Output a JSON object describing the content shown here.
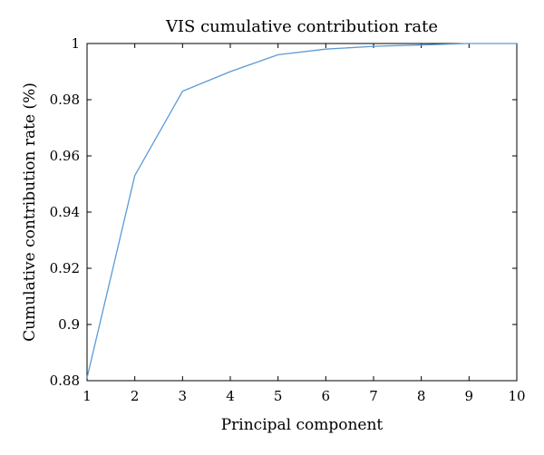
{
  "chart_data": {
    "type": "line",
    "title": "VIS cumulative contribution rate",
    "xlabel": "Principal component",
    "ylabel": "Cumulative contribution rate (%)",
    "xlim": [
      1,
      10
    ],
    "ylim": [
      0.88,
      1
    ],
    "xticks": [
      1,
      2,
      3,
      4,
      5,
      6,
      7,
      8,
      9,
      10
    ],
    "yticks": [
      0.88,
      0.9,
      0.92,
      0.94,
      0.96,
      0.98,
      1
    ],
    "ytick_labels": [
      "0.88",
      "0.9",
      "0.92",
      "0.94",
      "0.96",
      "0.98",
      "1"
    ],
    "grid": false,
    "legend": "none",
    "series": [
      {
        "color": "#5b9bd5",
        "x": [
          1,
          2,
          3,
          4,
          5,
          6,
          7,
          8,
          9,
          10
        ],
        "y": [
          0.881,
          0.953,
          0.983,
          0.99,
          0.996,
          0.998,
          0.999,
          0.9995,
          1.0,
          1.0
        ]
      }
    ]
  }
}
